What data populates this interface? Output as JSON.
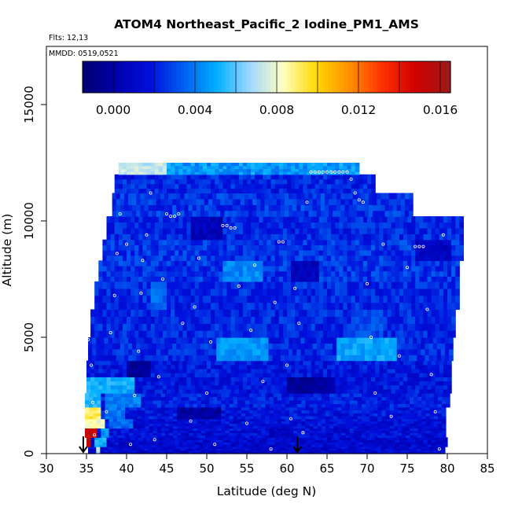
{
  "chart_data": {
    "type": "heatmap",
    "title": "ATOM4 Northeast_Pacific_2 Iodine_PM1_AMS",
    "annotations": {
      "flights": "Flts: 12,13",
      "dates": "MMDD: 0519,0521"
    },
    "xlabel": "Latitude (deg N)",
    "ylabel": "Altitude (m)",
    "xlim": [
      30,
      85
    ],
    "ylim": [
      0,
      17500
    ],
    "xticks": [
      "30",
      "35",
      "40",
      "45",
      "50",
      "55",
      "60",
      "65",
      "70",
      "75",
      "80",
      "85"
    ],
    "yticks": [
      "0",
      "5000",
      "10000",
      "15000"
    ],
    "colorbar": {
      "min": -0.0015,
      "max": 0.0165,
      "ticks": [
        "0.000",
        "0.004",
        "0.008",
        "0.012",
        "0.016"
      ],
      "tick_values": [
        0.0,
        0.004,
        0.008,
        0.012,
        0.016
      ],
      "colors": [
        "#000070",
        "#0000b0",
        "#0010dd",
        "#0060f0",
        "#00b0ff",
        "#a0d8ff",
        "#ffffc0",
        "#ffd800",
        "#ff9000",
        "#ff3000",
        "#d00000",
        "#a01818"
      ]
    },
    "altitude_bands": [
      {
        "alt": [
          0,
          300
        ],
        "lat": [
          35.2,
          79.8
        ],
        "value": 0.0012,
        "hot": [
          {
            "lat": [
              35.0,
              35.6
            ],
            "value": 0.0085
          },
          {
            "lat": [
              35.6,
              36.0
            ],
            "value": 0.0158
          },
          {
            "lat": [
              36.0,
              37.0
            ],
            "value": 0.0072
          }
        ]
      },
      {
        "alt": [
          300,
          700
        ],
        "lat": [
          35.0,
          79.8
        ],
        "value": 0.0012,
        "hot": [
          {
            "lat": [
              35.0,
              35.8
            ],
            "value": 0.0156
          },
          {
            "lat": [
              36.0,
              37.5
            ],
            "value": 0.0052
          }
        ]
      },
      {
        "alt": [
          700,
          1100
        ],
        "lat": [
          34.8,
          79.8
        ],
        "value": 0.0015,
        "hot": [
          {
            "lat": [
              34.8,
              36.5
            ],
            "value": 0.0152
          },
          {
            "lat": [
              36.5,
              38.0
            ],
            "value": 0.0045
          },
          {
            "lat": [
              57.8,
              60.5
            ],
            "value": 0.0005
          }
        ]
      },
      {
        "alt": [
          1100,
          1500
        ],
        "lat": [
          34.8,
          79.8
        ],
        "value": 0.0015,
        "hot": [
          {
            "lat": [
              34.8,
              37.5
            ],
            "value": 0.0082
          },
          {
            "lat": [
              37.5,
              41.0
            ],
            "value": 0.0035
          }
        ]
      },
      {
        "alt": [
          1500,
          2000
        ],
        "lat": [
          34.8,
          80.0
        ],
        "value": 0.0018,
        "hot": [
          {
            "lat": [
              34.8,
              37.0
            ],
            "value": 0.0092
          },
          {
            "lat": [
              37.0,
              40.0
            ],
            "value": 0.0038
          },
          {
            "lat": [
              46.0,
              52.0
            ],
            "value": -0.0002
          }
        ]
      },
      {
        "alt": [
          2000,
          2600
        ],
        "lat": [
          34.8,
          80.2
        ],
        "value": 0.002,
        "hot": [
          {
            "lat": [
              34.8,
              37.0
            ],
            "value": 0.0052
          },
          {
            "lat": [
              37.0,
              42.0
            ],
            "value": 0.004
          }
        ]
      },
      {
        "alt": [
          2600,
          3300
        ],
        "lat": [
          35.0,
          80.5
        ],
        "value": 0.0018,
        "hot": [
          {
            "lat": [
              35.0,
              41.0
            ],
            "value": 0.005
          },
          {
            "lat": [
              60.0,
              66.0
            ],
            "value": -0.0004
          }
        ]
      },
      {
        "alt": [
          3300,
          4000
        ],
        "lat": [
          35.0,
          80.5
        ],
        "value": 0.0018,
        "hot": [
          {
            "lat": [
              40.0,
              43.0
            ],
            "value": -0.0005
          }
        ]
      },
      {
        "alt": [
          4000,
          5000
        ],
        "lat": [
          35.2,
          80.8
        ],
        "value": 0.0022,
        "hot": [
          {
            "lat": [
              51.0,
              58.0
            ],
            "value": 0.0045
          },
          {
            "lat": [
              66.0,
              74.0
            ],
            "value": 0.0048
          }
        ]
      },
      {
        "alt": [
          5000,
          6200
        ],
        "lat": [
          35.5,
          81.0
        ],
        "value": 0.0022,
        "hot": [
          {
            "lat": [
              68.0,
              72.0
            ],
            "value": 0.003
          }
        ]
      },
      {
        "alt": [
          6200,
          7400
        ],
        "lat": [
          36.0,
          81.3
        ],
        "value": 0.0022,
        "hot": [
          {
            "lat": [
              43.0,
              45.0
            ],
            "value": 0.0035
          }
        ]
      },
      {
        "alt": [
          7400,
          8300
        ],
        "lat": [
          36.5,
          81.5
        ],
        "value": 0.0025,
        "hot": [
          {
            "lat": [
              52.0,
              57.0
            ],
            "value": 0.0042
          },
          {
            "lat": [
              60.5,
              64.0
            ],
            "value": 0.0005
          }
        ]
      },
      {
        "alt": [
          8300,
          9200
        ],
        "lat": [
          37.0,
          81.8
        ],
        "value": 0.0025,
        "hot": [
          {
            "lat": [
              76.0,
              80.5
            ],
            "value": 0.0008
          }
        ]
      },
      {
        "alt": [
          9200,
          10200
        ],
        "lat": [
          37.5,
          82.0
        ],
        "value": 0.0022,
        "hot": [
          {
            "lat": [
              48.0,
              52.0
            ],
            "value": 0.0005
          }
        ]
      },
      {
        "alt": [
          10200,
          11200
        ],
        "lat": [
          38.2,
          75.5
        ],
        "value": 0.0025
      },
      {
        "alt": [
          11200,
          12000
        ],
        "lat": [
          38.5,
          71.0
        ],
        "value": 0.0022
      },
      {
        "alt": [
          12000,
          12500
        ],
        "lat": [
          39.0,
          69.0
        ],
        "value": 0.0045,
        "hot": [
          {
            "lat": [
              39.0,
              45.0
            ],
            "value": 0.0072
          }
        ]
      }
    ],
    "flight_track_points": [
      [
        35.2,
        4900
      ],
      [
        35.6,
        3800
      ],
      [
        35.8,
        2200
      ],
      [
        36.0,
        800
      ],
      [
        37.5,
        1800
      ],
      [
        38.0,
        5200
      ],
      [
        38.5,
        6800
      ],
      [
        38.8,
        8600
      ],
      [
        39.2,
        10300
      ],
      [
        39.5,
        12100
      ],
      [
        40.0,
        9000
      ],
      [
        40.5,
        400
      ],
      [
        41.0,
        2500
      ],
      [
        41.5,
        4400
      ],
      [
        41.8,
        6900
      ],
      [
        42.0,
        8300
      ],
      [
        42.5,
        9400
      ],
      [
        43.0,
        11200
      ],
      [
        43.5,
        600
      ],
      [
        44.0,
        3300
      ],
      [
        44.5,
        7500
      ],
      [
        45.0,
        10300
      ],
      [
        45.5,
        10200
      ],
      [
        46.0,
        10200
      ],
      [
        46.5,
        10300
      ],
      [
        47.0,
        5600
      ],
      [
        48.0,
        1400
      ],
      [
        48.5,
        6300
      ],
      [
        49.0,
        8400
      ],
      [
        50.0,
        2600
      ],
      [
        50.5,
        4800
      ],
      [
        51.0,
        400
      ],
      [
        52.0,
        9800
      ],
      [
        52.5,
        9800
      ],
      [
        53.0,
        9700
      ],
      [
        53.5,
        9700
      ],
      [
        54.0,
        7200
      ],
      [
        55.0,
        1300
      ],
      [
        55.5,
        5300
      ],
      [
        56.0,
        8100
      ],
      [
        57.0,
        3100
      ],
      [
        58.0,
        200
      ],
      [
        58.5,
        6500
      ],
      [
        59.0,
        9100
      ],
      [
        59.5,
        9100
      ],
      [
        60.0,
        3800
      ],
      [
        60.5,
        1500
      ],
      [
        61.0,
        7100
      ],
      [
        61.5,
        5600
      ],
      [
        62.0,
        900
      ],
      [
        62.5,
        10800
      ],
      [
        63.0,
        12100
      ],
      [
        63.5,
        12100
      ],
      [
        64.0,
        12100
      ],
      [
        64.5,
        12100
      ],
      [
        65.0,
        12100
      ],
      [
        65.5,
        12100
      ],
      [
        66.0,
        12100
      ],
      [
        66.5,
        12100
      ],
      [
        67.0,
        12100
      ],
      [
        67.5,
        12100
      ],
      [
        68.0,
        11800
      ],
      [
        68.5,
        11200
      ],
      [
        69.0,
        10900
      ],
      [
        69.5,
        10800
      ],
      [
        70.0,
        7300
      ],
      [
        70.5,
        5000
      ],
      [
        71.0,
        2600
      ],
      [
        72.0,
        9000
      ],
      [
        73.0,
        1600
      ],
      [
        74.0,
        4200
      ],
      [
        75.0,
        8000
      ],
      [
        76.0,
        8900
      ],
      [
        76.5,
        8900
      ],
      [
        77.0,
        8900
      ],
      [
        77.5,
        6200
      ],
      [
        78.0,
        3400
      ],
      [
        78.5,
        1800
      ],
      [
        79.0,
        200
      ],
      [
        79.5,
        9400
      ]
    ],
    "arrows_at_latitude": [
      34.6,
      61.3
    ]
  }
}
